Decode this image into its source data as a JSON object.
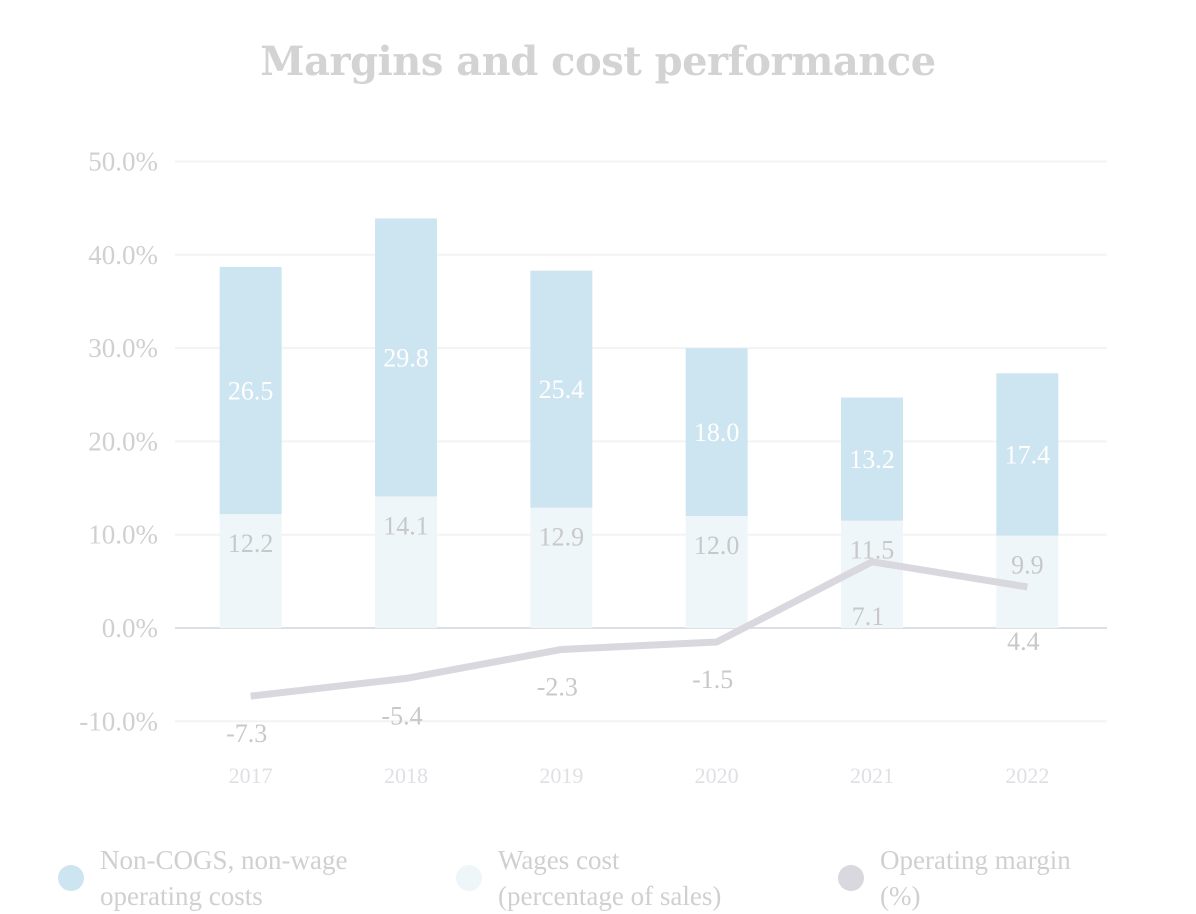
{
  "chart_data": {
    "type": "bar",
    "title": "Margins and cost performance",
    "xlabel": "",
    "ylabel": "",
    "categories": [
      "2017",
      "2018",
      "2019",
      "2020",
      "2021",
      "2022"
    ],
    "ylim": [
      -10,
      50
    ],
    "yticks": [
      50,
      40,
      30,
      20,
      10,
      0,
      -10
    ],
    "ytick_labels": [
      "50.0%",
      "40.0%",
      "30.0%",
      "20.0%",
      "10.0%",
      "0.0%",
      "-10.0%"
    ],
    "grid": true,
    "stacked": true,
    "series": [
      {
        "name": "Wages cost (percentage of sales)",
        "kind": "bar",
        "color": "#eef6fa",
        "values": [
          12.2,
          14.1,
          12.9,
          12.0,
          11.5,
          9.9
        ],
        "labels": [
          "12.2",
          "14.1",
          "12.9",
          "12.0",
          "11.5",
          "9.9"
        ]
      },
      {
        "name": "Non-COGS, non-wage operating costs",
        "kind": "bar",
        "color": "#cde4f1",
        "values": [
          26.5,
          29.8,
          25.4,
          18.0,
          13.2,
          17.4
        ],
        "labels": [
          "26.5",
          "29.8",
          "25.4",
          "18.0",
          "13.2",
          "17.4"
        ]
      },
      {
        "name": "Operating margin (%)",
        "kind": "line",
        "color": "#d8d8de",
        "values": [
          -7.3,
          -5.4,
          -2.3,
          -1.5,
          7.1,
          4.4
        ],
        "labels": [
          "-7.3",
          "-5.4",
          "-2.3",
          "-1.5",
          "7.1",
          "4.4"
        ]
      }
    ],
    "legend_position": "bottom",
    "legend": [
      {
        "line1": "Non-COGS, non-wage",
        "line2": "operating costs",
        "color": "#cde4f1"
      },
      {
        "line1": "Wages cost",
        "line2": "(percentage of sales)",
        "color": "#eef6fa"
      },
      {
        "line1": "Operating margin",
        "line2": "(%)",
        "color": "#d8d8de"
      }
    ]
  }
}
